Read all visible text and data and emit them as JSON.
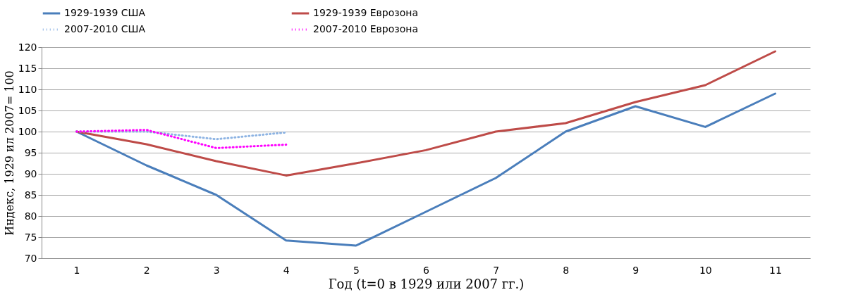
{
  "chart_data": {
    "type": "line",
    "xlabel": "Год (t=0 в 1929 или 2007 гг.)",
    "ylabel": "Индекс, 1929 ил 2007= 100",
    "categories": [
      "1",
      "2",
      "3",
      "4",
      "5",
      "6",
      "7",
      "8",
      "9",
      "10",
      "11"
    ],
    "ylim": [
      70,
      120
    ],
    "yticks": [
      70,
      75,
      80,
      85,
      90,
      95,
      100,
      105,
      110,
      115,
      120
    ],
    "grid": "y",
    "legend": "top",
    "marker": "none",
    "series": [
      {
        "name": "1929-1939 США",
        "color": "#4a7ebb",
        "line_style": "solid",
        "values": [
          100,
          92,
          85,
          74.2,
          73,
          81,
          89,
          100,
          106,
          101.1,
          109
        ]
      },
      {
        "name": "1929-1939 Еврозона",
        "color": "#be4b48",
        "line_style": "solid",
        "values": [
          100,
          97,
          93,
          89.6,
          92.5,
          95.6,
          100,
          102,
          107,
          111,
          119
        ]
      },
      {
        "name": "2007-2010 США",
        "color": "#8eb4e3",
        "line_style": "dotted",
        "values": [
          100,
          100,
          98.2,
          99.8,
          null,
          null,
          null,
          null,
          null,
          null,
          null
        ]
      },
      {
        "name": "2007-2010 Еврозона",
        "color": "#ff00ff",
        "line_style": "dotted",
        "values": [
          100,
          100.4,
          96.1,
          96.9,
          null,
          null,
          null,
          null,
          null,
          null,
          null
        ]
      }
    ]
  }
}
